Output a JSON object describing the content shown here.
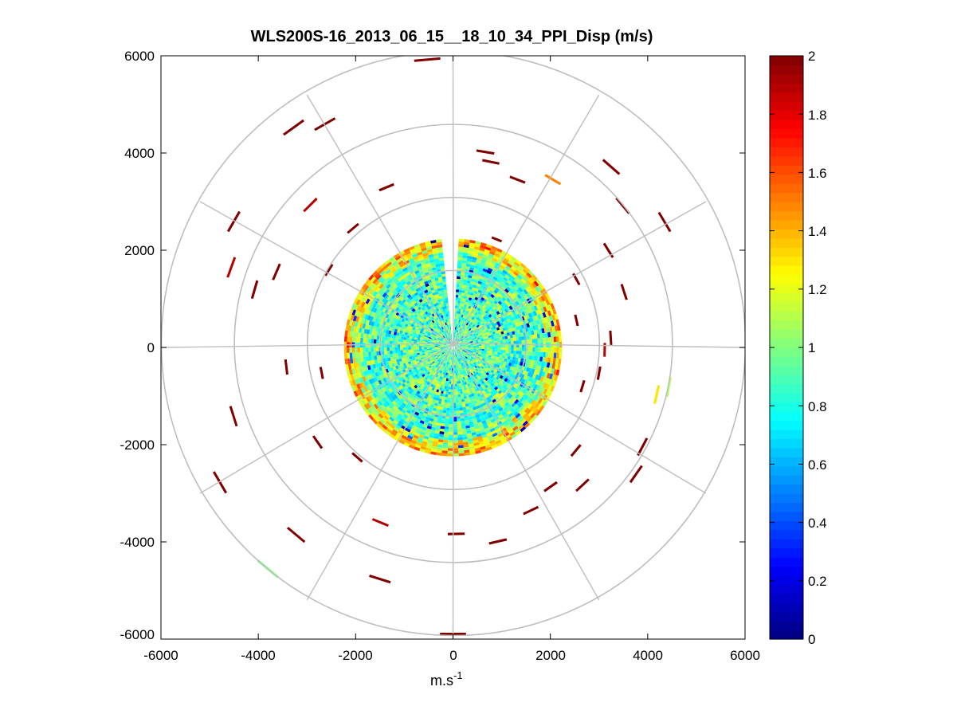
{
  "chart_data": {
    "type": "heatmap",
    "subtype": "polar-ppi-scan",
    "title": "WLS200S-16_2013_06_15__18_10_34_PPI_Disp (m/s)",
    "xlabel": "m.s",
    "xlabel_superscript": "-1",
    "ylabel": "",
    "xlim": [
      -6000,
      6000
    ],
    "ylim": [
      -6000,
      6000
    ],
    "xticks": [
      -6000,
      -4000,
      -2000,
      0,
      2000,
      4000,
      6000
    ],
    "yticks": [
      -6000,
      -4000,
      -2000,
      0,
      2000,
      4000,
      6000
    ],
    "xtick_labels": [
      "-6000",
      "-4000",
      "-2000",
      "0",
      "2000",
      "4000",
      "6000"
    ],
    "ytick_labels": [
      "-6000",
      "-4000",
      "-2000",
      "0",
      "2000",
      "4000",
      "6000"
    ],
    "polar_grid": {
      "range_rings": [
        1500,
        3000,
        4500,
        6000
      ],
      "spoke_angles_deg": [
        0,
        30,
        60,
        90,
        120,
        150,
        180,
        210,
        240,
        270,
        300,
        330
      ],
      "color": "#bebebe"
    },
    "colorbar": {
      "colormap": "jet",
      "clim": [
        0,
        2
      ],
      "ticks": [
        0,
        0.2,
        0.4,
        0.6,
        0.8,
        1,
        1.2,
        1.4,
        1.6,
        1.8,
        2
      ],
      "tick_labels": [
        "0",
        "0.2",
        "0.4",
        "0.6",
        "0.8",
        "1",
        "1.2",
        "1.4",
        "1.6",
        "1.8",
        "2"
      ],
      "levels": 64
    },
    "inner_disk": {
      "radius_max_m": 2200,
      "typical_value": 0.9,
      "value_spread": 0.3,
      "missing_sector_deg": [
        -6,
        3
      ]
    },
    "outer_points": [
      {
        "r": 5540,
        "az": -120.1,
        "v": 2.0
      },
      {
        "r": 5300,
        "az": -29.8,
        "v": 2.0
      },
      {
        "r": 5060,
        "az": 59.3,
        "v": 2.0
      },
      {
        "r": 5900,
        "az": 180,
        "v": 2.0
      },
      {
        "r": 5200,
        "az": -60.1,
        "v": 2.0
      },
      {
        "r": 4400,
        "az": 117.7,
        "v": 2.0
      },
      {
        "r": 4250,
        "az": -73.7,
        "v": 2.0
      },
      {
        "r": 4730,
        "az": -107.4,
        "v": 2.0
      },
      {
        "r": 5030,
        "az": -140.1,
        "v": 2.0
      },
      {
        "r": 5590,
        "az": -35.9,
        "v": 2.0
      },
      {
        "r": 3950,
        "az": -66.8,
        "v": 2.0
      },
      {
        "r": 3450,
        "az": -96.7,
        "v": 2.0
      },
      {
        "r": 3890,
        "az": 136.8,
        "v": 2.0
      },
      {
        "r": 3900,
        "az": 11.5,
        "v": 2.0
      },
      {
        "r": 5000,
        "az": -162.5,
        "v": 2.0
      },
      {
        "r": 4550,
        "az": 50.1,
        "v": 2.0
      },
      {
        "r": 4510,
        "az": 100.4,
        "v": 1.1
      },
      {
        "r": 4020,
        "az": 30.7,
        "v": 1.5
      },
      {
        "r": 4940,
        "az": 41.2,
        "v": 2.0
      },
      {
        "r": 4080,
        "az": 9.4,
        "v": 2.0
      },
      {
        "r": 3700,
        "az": 21.0,
        "v": 2.0
      },
      {
        "r": 3840,
        "az": 179.0,
        "v": 2.0
      },
      {
        "r": 3250,
        "az": 86.5,
        "v": 2.0
      },
      {
        "r": 3120,
        "az": 90.9,
        "v": 1.9
      },
      {
        "r": 2600,
        "az": 77.6,
        "v": 2.0
      },
      {
        "r": 3570,
        "az": -22.5,
        "v": 2.0
      },
      {
        "r": 3720,
        "az": 154.5,
        "v": 2.0
      },
      {
        "r": 4580,
        "az": 124.7,
        "v": 2.0
      },
      {
        "r": 4850,
        "az": -70.1,
        "v": 1.9
      },
      {
        "r": 5950,
        "az": -5.1,
        "v": 2.0
      },
      {
        "r": 5940,
        "az": -140.1,
        "v": 1.0
      },
      {
        "r": 3000,
        "az": -139.0,
        "v": 2.0
      },
      {
        "r": 2780,
        "az": 106.7,
        "v": 2.0
      },
      {
        "r": 3010,
        "az": -58.0,
        "v": 2.0
      },
      {
        "r": 3770,
        "az": 58.0,
        "v": 2.0
      },
      {
        "r": 4300,
        "az": 103.0,
        "v": 1.3
      },
      {
        "r": 3900,
        "az": -157.5,
        "v": 1.9
      },
      {
        "r": 4100,
        "az": 167.0,
        "v": 2.0
      },
      {
        "r": 2400,
        "az": 22.0,
        "v": 2.0
      },
      {
        "r": 3300,
        "az": 130.0,
        "v": 2.0
      },
      {
        "r": 2750,
        "az": -101.0,
        "v": 2.0
      },
      {
        "r": 3200,
        "az": -40.0,
        "v": 2.0
      },
      {
        "r": 2900,
        "az": 61.0,
        "v": 2.0
      },
      {
        "r": 3050,
        "az": 100.0,
        "v": 2.0
      },
      {
        "r": 3400,
        "az": -125.0,
        "v": 2.0
      },
      {
        "r": 4150,
        "az": -45.0,
        "v": 1.9
      },
      {
        "r": 3700,
        "az": 72.0,
        "v": 2.0
      },
      {
        "r": 3500,
        "az": 145.0,
        "v": 2.0
      }
    ]
  }
}
